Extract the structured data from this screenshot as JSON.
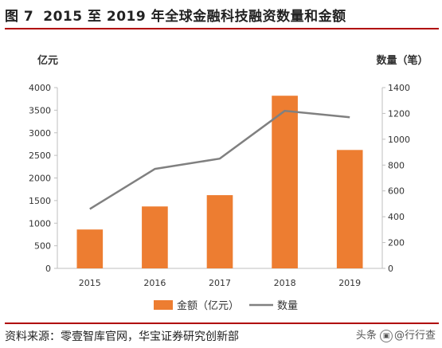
{
  "header": {
    "figure_number": "图 7",
    "title": "2015 至 2019 年全球金融科技融资数量和金额"
  },
  "footer": {
    "source": "资料来源：零壹智库官网，华宝证券研究创新部",
    "watermark_prefix": "头条",
    "watermark_handle": "@行行查"
  },
  "colors": {
    "bar": "#ED7D31",
    "line": "#808080",
    "rule": "#B00000"
  },
  "chart_data": {
    "type": "bar+line",
    "categories": [
      "2015",
      "2016",
      "2017",
      "2018",
      "2019"
    ],
    "y_left": {
      "label": "亿元",
      "ylim": [
        0,
        4000
      ],
      "ticks": [
        0,
        500,
        1000,
        1500,
        2000,
        2500,
        3000,
        3500,
        4000
      ],
      "tick_labels": [
        "0",
        "500",
        "1000",
        "1500",
        "2000",
        "2500",
        "3000",
        "3500",
        "4000"
      ]
    },
    "y_right": {
      "label": "数量（笔）",
      "ylim": [
        0,
        1400
      ],
      "ticks": [
        0,
        200,
        400,
        600,
        800,
        1000,
        1200,
        1400
      ],
      "tick_labels": [
        "0",
        "200",
        "400",
        "600",
        "800",
        "1000",
        "1200",
        "1400"
      ]
    },
    "series": [
      {
        "name": "金额（亿元）",
        "type": "bar",
        "axis": "left",
        "values": [
          860,
          1370,
          1620,
          3820,
          2620
        ]
      },
      {
        "name": "数量",
        "type": "line",
        "axis": "right",
        "values": [
          460,
          770,
          850,
          1220,
          1170
        ]
      }
    ],
    "legend_position": "bottom",
    "grid": false
  }
}
